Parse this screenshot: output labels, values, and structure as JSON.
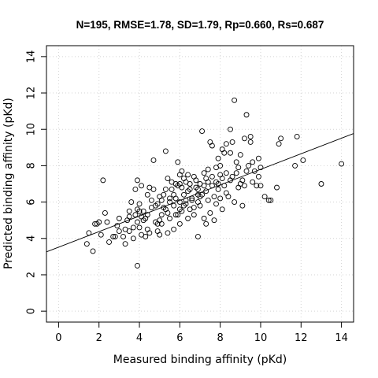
{
  "chart_data": {
    "type": "scatter",
    "title": "N=195, RMSE=1.78, SD=1.79, Rp=0.660, Rs=0.687",
    "xlabel": "Measured binding affinity (pKd)",
    "ylabel": "Predicted binding affinity (pKd)",
    "xlim": [
      -0.6,
      14.6
    ],
    "ylim": [
      -0.6,
      14.6
    ],
    "xticks": [
      0,
      2,
      4,
      6,
      8,
      10,
      12,
      14
    ],
    "yticks": [
      0,
      2,
      4,
      6,
      8,
      10,
      12,
      14
    ],
    "grid": true,
    "fit_line": {
      "slope": 0.428,
      "intercept": 3.52
    },
    "points": [
      [
        1.4,
        3.7
      ],
      [
        1.5,
        4.3
      ],
      [
        1.7,
        3.3
      ],
      [
        1.8,
        4.8
      ],
      [
        1.9,
        4.8
      ],
      [
        2.1,
        4.2
      ],
      [
        2.2,
        7.2
      ],
      [
        2.3,
        5.4
      ],
      [
        2.4,
        4.9
      ],
      [
        2.5,
        3.8
      ],
      [
        2.7,
        4.1
      ],
      [
        2.8,
        4.1
      ],
      [
        2.9,
        4.7
      ],
      [
        3.0,
        5.1
      ],
      [
        3.2,
        4.1
      ],
      [
        3.3,
        4.5
      ],
      [
        3.3,
        3.7
      ],
      [
        3.4,
        5.0
      ],
      [
        3.5,
        4.4
      ],
      [
        3.5,
        5.2
      ],
      [
        3.6,
        6.0
      ],
      [
        3.7,
        4.0
      ],
      [
        3.7,
        4.6
      ],
      [
        3.8,
        6.7
      ],
      [
        3.8,
        5.3
      ],
      [
        3.9,
        7.2
      ],
      [
        3.9,
        2.5
      ],
      [
        3.9,
        4.9
      ],
      [
        4.0,
        4.6
      ],
      [
        4.0,
        5.9
      ],
      [
        4.1,
        6.9
      ],
      [
        4.1,
        4.2
      ],
      [
        4.2,
        5.5
      ],
      [
        4.3,
        5.1
      ],
      [
        4.4,
        4.5
      ],
      [
        4.4,
        6.4
      ],
      [
        4.5,
        6.8
      ],
      [
        4.5,
        4.3
      ],
      [
        4.6,
        5.7
      ],
      [
        4.7,
        6.7
      ],
      [
        4.7,
        8.3
      ],
      [
        4.8,
        4.9
      ],
      [
        4.9,
        4.4
      ],
      [
        4.9,
        5.9
      ],
      [
        5.0,
        4.2
      ],
      [
        5.0,
        6.3
      ],
      [
        5.1,
        5.3
      ],
      [
        5.1,
        4.8
      ],
      [
        5.2,
        6.4
      ],
      [
        5.3,
        5.6
      ],
      [
        5.3,
        8.8
      ],
      [
        5.4,
        4.3
      ],
      [
        5.4,
        7.3
      ],
      [
        5.5,
        6.0
      ],
      [
        5.5,
        5.1
      ],
      [
        5.6,
        6.7
      ],
      [
        5.7,
        5.8
      ],
      [
        5.7,
        4.5
      ],
      [
        5.8,
        7.0
      ],
      [
        5.8,
        6.2
      ],
      [
        5.9,
        5.3
      ],
      [
        5.9,
        8.2
      ],
      [
        6.0,
        7.5
      ],
      [
        6.0,
        6.0
      ],
      [
        6.0,
        4.8
      ],
      [
        6.1,
        6.8
      ],
      [
        6.1,
        5.5
      ],
      [
        6.2,
        7.3
      ],
      [
        6.2,
        6.4
      ],
      [
        6.3,
        5.9
      ],
      [
        6.3,
        7.1
      ],
      [
        6.4,
        5.1
      ],
      [
        6.4,
        6.6
      ],
      [
        6.5,
        7.0
      ],
      [
        6.5,
        5.6
      ],
      [
        6.6,
        6.2
      ],
      [
        6.7,
        7.4
      ],
      [
        6.7,
        5.3
      ],
      [
        6.8,
        6.8
      ],
      [
        6.9,
        6.0
      ],
      [
        6.9,
        4.1
      ],
      [
        7.0,
        7.0
      ],
      [
        7.0,
        5.8
      ],
      [
        7.1,
        6.4
      ],
      [
        7.1,
        9.9
      ],
      [
        7.2,
        7.6
      ],
      [
        7.2,
        5.1
      ],
      [
        7.3,
        6.6
      ],
      [
        7.3,
        4.8
      ],
      [
        7.4,
        7.8
      ],
      [
        7.4,
        6.1
      ],
      [
        7.5,
        9.3
      ],
      [
        7.5,
        5.4
      ],
      [
        7.6,
        9.1
      ],
      [
        7.6,
        6.9
      ],
      [
        7.7,
        6.3
      ],
      [
        7.7,
        5.0
      ],
      [
        7.8,
        7.1
      ],
      [
        7.8,
        5.9
      ],
      [
        7.9,
        8.4
      ],
      [
        7.9,
        6.7
      ],
      [
        8.0,
        7.5
      ],
      [
        8.0,
        6.2
      ],
      [
        8.1,
        8.9
      ],
      [
        8.1,
        5.6
      ],
      [
        8.2,
        8.7
      ],
      [
        8.2,
        6.9
      ],
      [
        8.3,
        7.6
      ],
      [
        8.3,
        9.2
      ],
      [
        8.4,
        6.3
      ],
      [
        8.5,
        8.7
      ],
      [
        8.5,
        10.0
      ],
      [
        8.5,
        7.2
      ],
      [
        8.6,
        9.3
      ],
      [
        8.7,
        6.0
      ],
      [
        8.7,
        11.6
      ],
      [
        8.8,
        8.2
      ],
      [
        8.8,
        7.6
      ],
      [
        8.9,
        6.8
      ],
      [
        9.0,
        8.6
      ],
      [
        9.1,
        7.2
      ],
      [
        9.1,
        5.8
      ],
      [
        9.2,
        9.5
      ],
      [
        9.2,
        6.9
      ],
      [
        9.3,
        10.8
      ],
      [
        9.3,
        7.7
      ],
      [
        9.4,
        8.0
      ],
      [
        9.5,
        9.6
      ],
      [
        9.5,
        9.3
      ],
      [
        9.6,
        7.1
      ],
      [
        9.7,
        7.7
      ],
      [
        9.8,
        6.9
      ],
      [
        9.9,
        7.4
      ],
      [
        9.9,
        8.4
      ],
      [
        10.0,
        7.9
      ],
      [
        10.0,
        6.9
      ],
      [
        10.2,
        6.3
      ],
      [
        10.4,
        6.1
      ],
      [
        10.5,
        6.1
      ],
      [
        10.8,
        6.8
      ],
      [
        10.9,
        9.2
      ],
      [
        11.0,
        9.5
      ],
      [
        11.7,
        8.0
      ],
      [
        11.8,
        9.6
      ],
      [
        12.1,
        8.3
      ],
      [
        13.0,
        7.0
      ],
      [
        14.0,
        8.1
      ],
      [
        4.2,
        5.0
      ],
      [
        5.1,
        6.1
      ],
      [
        6.0,
        5.6
      ],
      [
        6.3,
        6.1
      ],
      [
        6.5,
        6.7
      ],
      [
        5.7,
        6.4
      ],
      [
        4.8,
        5.8
      ],
      [
        5.2,
        5.7
      ],
      [
        6.8,
        7.2
      ],
      [
        7.0,
        6.3
      ],
      [
        6.2,
        5.8
      ],
      [
        3.5,
        5.5
      ],
      [
        4.4,
        5.3
      ],
      [
        5.6,
        7.1
      ],
      [
        7.4,
        7.1
      ],
      [
        8.6,
        7.4
      ],
      [
        9.6,
        8.2
      ],
      [
        2.0,
        4.9
      ],
      [
        3.0,
        4.4
      ],
      [
        4.0,
        5.5
      ],
      [
        5.0,
        5.0
      ],
      [
        6.6,
        6.1
      ],
      [
        7.9,
        7.0
      ],
      [
        8.3,
        6.5
      ],
      [
        5.3,
        6.7
      ],
      [
        6.1,
        7.7
      ],
      [
        4.6,
        6.1
      ],
      [
        5.9,
        6.9
      ],
      [
        6.9,
        6.7
      ],
      [
        7.6,
        7.4
      ],
      [
        8.9,
        7.9
      ],
      [
        5.4,
        5.4
      ],
      [
        4.9,
        4.8
      ],
      [
        6.4,
        7.5
      ],
      [
        7.2,
        6.9
      ],
      [
        8.0,
        8.0
      ],
      [
        3.9,
        5.6
      ],
      [
        4.3,
        4.1
      ],
      [
        6.7,
        5.7
      ],
      [
        7.8,
        7.9
      ],
      [
        9.0,
        7.0
      ],
      [
        5.8,
        5.3
      ],
      [
        6.0,
        7.0
      ],
      [
        7.3,
        7.3
      ],
      [
        4.1,
        5.2
      ],
      [
        5.5,
        6.2
      ],
      [
        6.9,
        6.4
      ],
      [
        8.1,
        7.3
      ]
    ]
  }
}
